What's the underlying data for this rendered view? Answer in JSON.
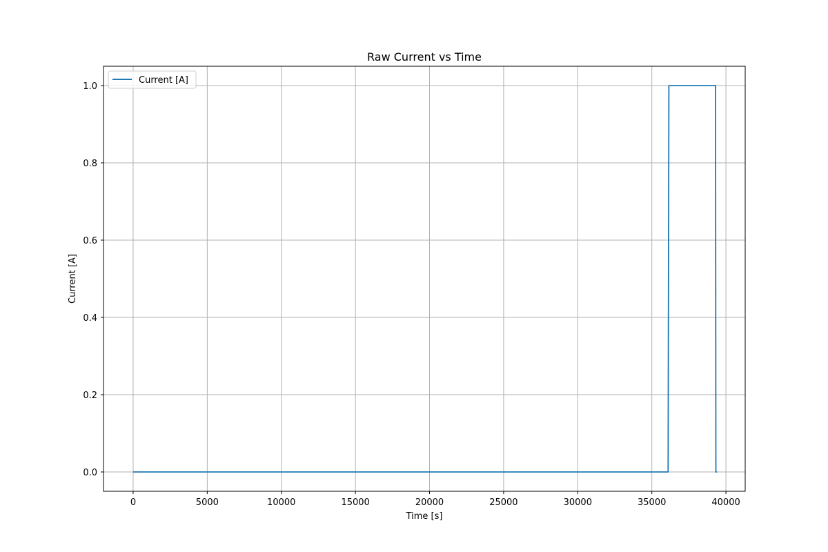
{
  "chart_data": {
    "type": "line",
    "title": "Raw Current vs Time",
    "xlabel": "Time [s]",
    "ylabel": "Current [A]",
    "xlim": [
      -2000,
      41300
    ],
    "ylim": [
      -0.05,
      1.05
    ],
    "grid": true,
    "legend_position": "top-left",
    "x_ticks": [
      0,
      5000,
      10000,
      15000,
      20000,
      25000,
      30000,
      35000,
      40000
    ],
    "y_ticks": [
      0.0,
      0.2,
      0.4,
      0.6,
      0.8,
      1.0
    ],
    "x_tick_labels": [
      "0",
      "5000",
      "10000",
      "15000",
      "20000",
      "25000",
      "30000",
      "35000",
      "40000"
    ],
    "y_tick_labels": [
      "0.0",
      "0.2",
      "0.4",
      "0.6",
      "0.8",
      "1.0"
    ],
    "series": [
      {
        "name": "Current [A]",
        "color": "#1f77b4",
        "x": [
          0,
          36100,
          36150,
          39300,
          39320,
          39400
        ],
        "y": [
          0.0,
          0.0,
          1.0,
          1.0,
          0.0,
          0.0
        ]
      }
    ]
  }
}
